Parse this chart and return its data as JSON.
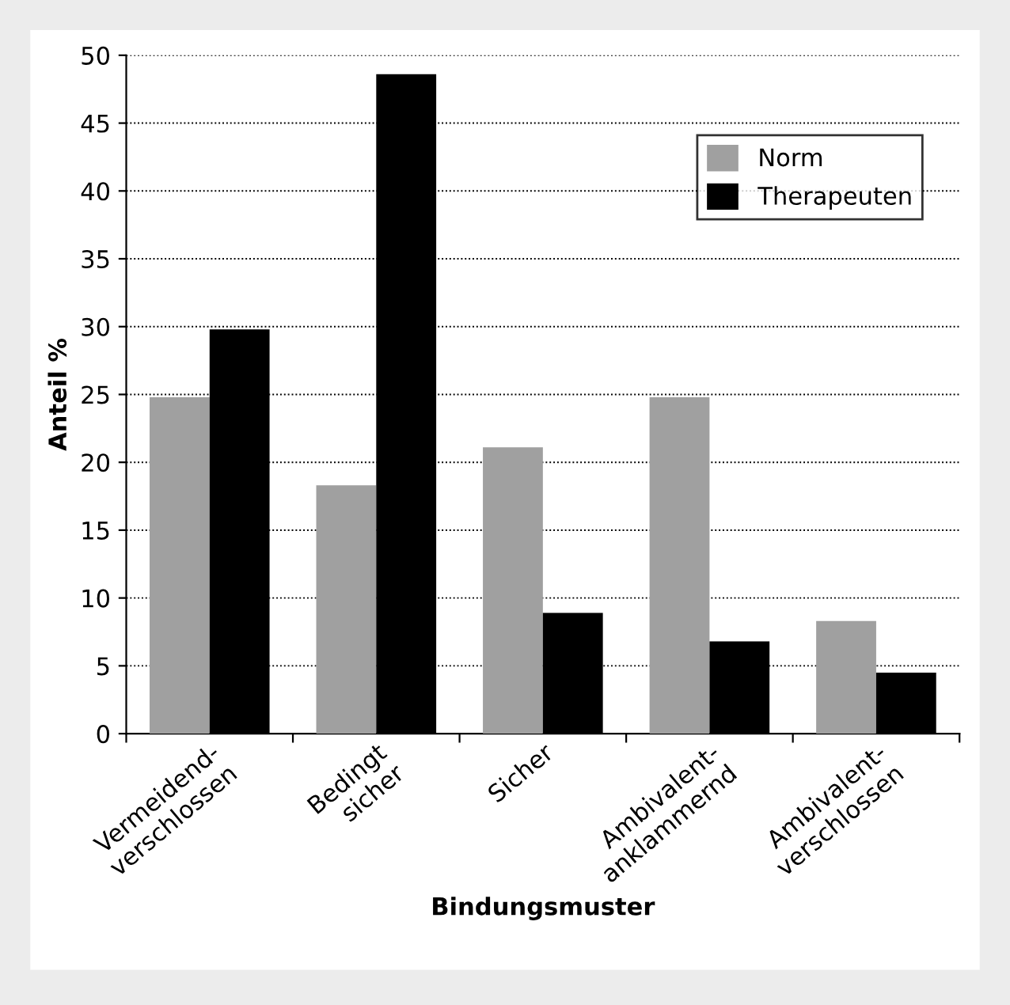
{
  "chart_data": {
    "type": "bar",
    "xlabel": "Bindungsmuster",
    "ylabel": "Anteil %",
    "categories": [
      "Vermeidend-\nverschlossen",
      "Bedingt\nsicher",
      "Sicher",
      "Ambivalent-\nanklammernd",
      "Ambivalent-\nverschlossen"
    ],
    "series": [
      {
        "name": "Norm",
        "color": "#a0a0a0",
        "values": [
          24.8,
          18.3,
          21.1,
          24.8,
          8.3
        ]
      },
      {
        "name": "Therapeuten",
        "color": "#000000",
        "values": [
          29.8,
          48.6,
          8.9,
          6.8,
          4.5
        ]
      }
    ],
    "ylim": [
      0,
      50
    ],
    "yticks": [
      0,
      5,
      10,
      15,
      20,
      25,
      30,
      35,
      40,
      45,
      50
    ],
    "grid": "y",
    "legend": "top right"
  }
}
